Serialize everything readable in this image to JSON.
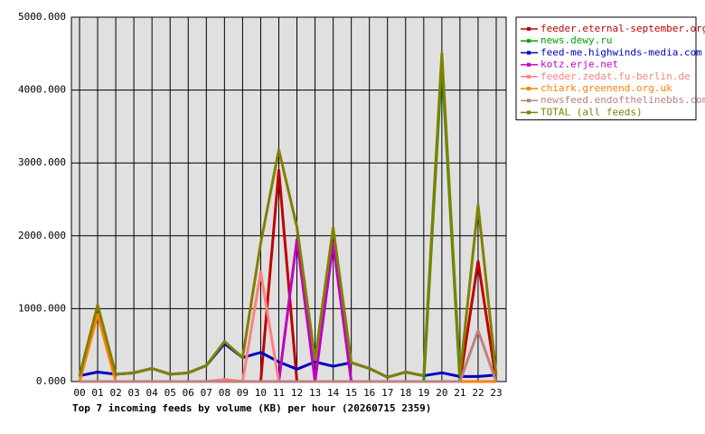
{
  "chart_data": {
    "type": "line",
    "title": "Top 7 incoming feeds by volume (KB) per hour (20260715 2359)",
    "categories": [
      "00",
      "01",
      "02",
      "03",
      "04",
      "05",
      "06",
      "07",
      "08",
      "09",
      "10",
      "11",
      "12",
      "13",
      "14",
      "15",
      "16",
      "17",
      "18",
      "19",
      "20",
      "21",
      "22",
      "23"
    ],
    "ylim": [
      0,
      5000
    ],
    "yticks": [
      {
        "value": 0,
        "label": "0.000"
      },
      {
        "value": 1000,
        "label": "1000.000"
      },
      {
        "value": 2000,
        "label": "2000.000"
      },
      {
        "value": 3000,
        "label": "3000.000"
      },
      {
        "value": 4000,
        "label": "4000.000"
      },
      {
        "value": 5000,
        "label": "5000.000"
      }
    ],
    "grid": true,
    "legend": "right",
    "series": [
      {
        "name": "feeder.eternal-september.org",
        "color": "#c00000",
        "values": [
          0,
          0,
          0,
          0,
          0,
          0,
          0,
          0,
          0,
          0,
          0,
          2900,
          0,
          0,
          0,
          0,
          0,
          0,
          0,
          0,
          0,
          0,
          1650,
          0
        ]
      },
      {
        "name": "news.dewy.ru",
        "color": "#00a000",
        "values": [
          0,
          0,
          0,
          0,
          0,
          0,
          0,
          0,
          0,
          0,
          0,
          0,
          0,
          0,
          0,
          0,
          0,
          0,
          0,
          0,
          4380,
          0,
          0,
          0
        ]
      },
      {
        "name": "feed-me.highwinds-media.com",
        "color": "#0000c0",
        "values": [
          80,
          130,
          100,
          120,
          180,
          100,
          120,
          220,
          520,
          330,
          400,
          270,
          170,
          270,
          210,
          260,
          180,
          60,
          130,
          80,
          120,
          70,
          70,
          90
        ]
      },
      {
        "name": "kotz.erje.net",
        "color": "#c000c0",
        "values": [
          0,
          0,
          0,
          0,
          0,
          0,
          0,
          0,
          0,
          0,
          0,
          0,
          1950,
          0,
          1900,
          0,
          0,
          0,
          0,
          0,
          0,
          0,
          0,
          0
        ]
      },
      {
        "name": "feeder.zedat.fu-berlin.de",
        "color": "#ff8080",
        "values": [
          0,
          0,
          0,
          0,
          0,
          0,
          0,
          0,
          30,
          0,
          1500,
          0,
          0,
          0,
          0,
          0,
          0,
          0,
          0,
          0,
          0,
          0,
          0,
          0
        ]
      },
      {
        "name": "chiark.greenend.org.uk",
        "color": "#ff8000",
        "values": [
          0,
          920,
          0,
          0,
          0,
          0,
          0,
          0,
          0,
          0,
          0,
          0,
          0,
          0,
          0,
          0,
          0,
          0,
          0,
          0,
          0,
          0,
          0,
          0
        ]
      },
      {
        "name": "newsfeed.endofthelinebbs.com",
        "color": "#c08080",
        "values": [
          0,
          0,
          0,
          0,
          0,
          0,
          0,
          0,
          0,
          0,
          0,
          0,
          0,
          0,
          0,
          0,
          0,
          0,
          0,
          0,
          0,
          0,
          700,
          0
        ]
      },
      {
        "name": "TOTAL (all feeds)",
        "color": "#808000",
        "values": [
          80,
          1050,
          100,
          120,
          180,
          100,
          120,
          220,
          550,
          330,
          1900,
          3180,
          2120,
          300,
          2110,
          260,
          180,
          60,
          130,
          80,
          4500,
          80,
          2420,
          90
        ]
      }
    ]
  }
}
